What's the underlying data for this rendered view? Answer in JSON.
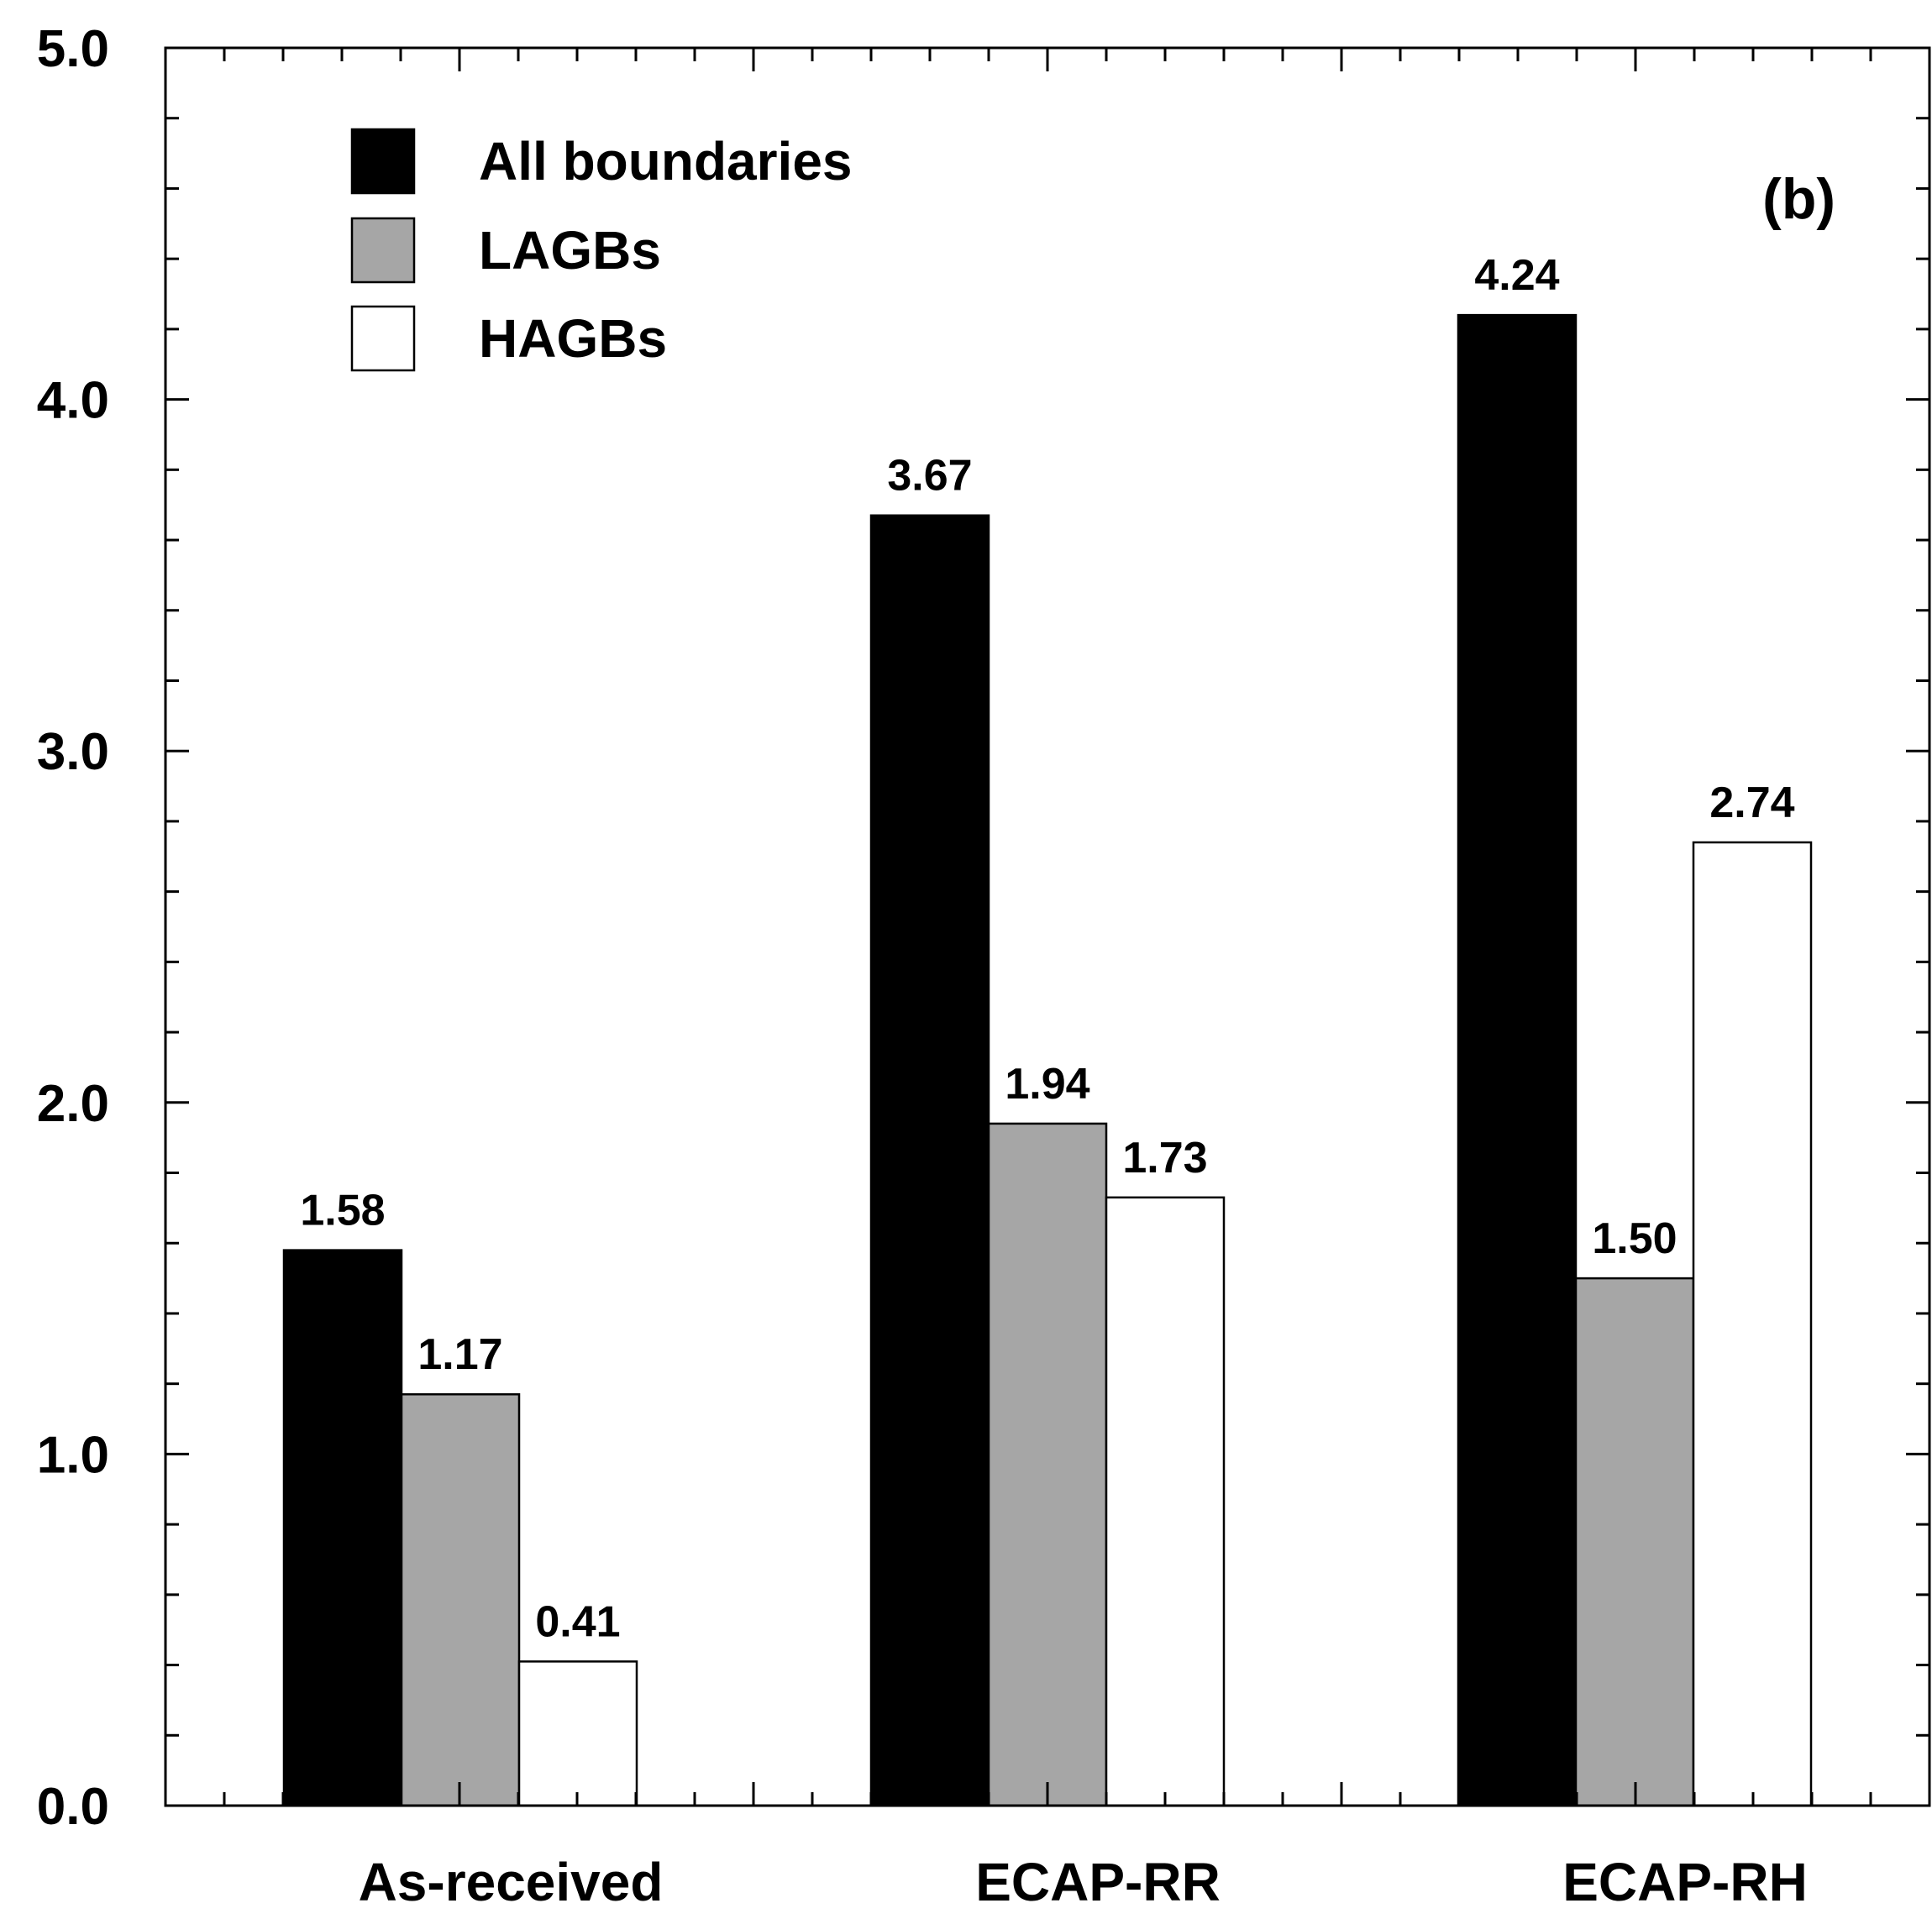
{
  "chart_data": {
    "type": "bar",
    "title": "",
    "xlabel": "",
    "ylabel": "",
    "ylim": [
      0,
      5.0
    ],
    "yticks": [
      "0.0",
      "1.0",
      "2.0",
      "3.0",
      "4.0",
      "5.0"
    ],
    "y_minor_step": 0.2,
    "categories": [
      "As-received",
      "ECAP-RR",
      "ECAP-RH"
    ],
    "series": [
      {
        "name": "All boundaries",
        "values": [
          1.58,
          3.67,
          4.24
        ],
        "labels": [
          "1.58",
          "3.67",
          "4.24"
        ],
        "fill": "#000000"
      },
      {
        "name": "LAGBs",
        "values": [
          1.17,
          1.94,
          1.5
        ],
        "labels": [
          "1.17",
          "1.94",
          "1.50"
        ],
        "fill": "#a6a6a6"
      },
      {
        "name": "HAGBs",
        "values": [
          0.41,
          1.73,
          2.74
        ],
        "labels": [
          "0.41",
          "1.73",
          "2.74"
        ],
        "fill": "#ffffff"
      }
    ],
    "annotation": "(b)",
    "legend_position": "top-left",
    "grid": false
  }
}
